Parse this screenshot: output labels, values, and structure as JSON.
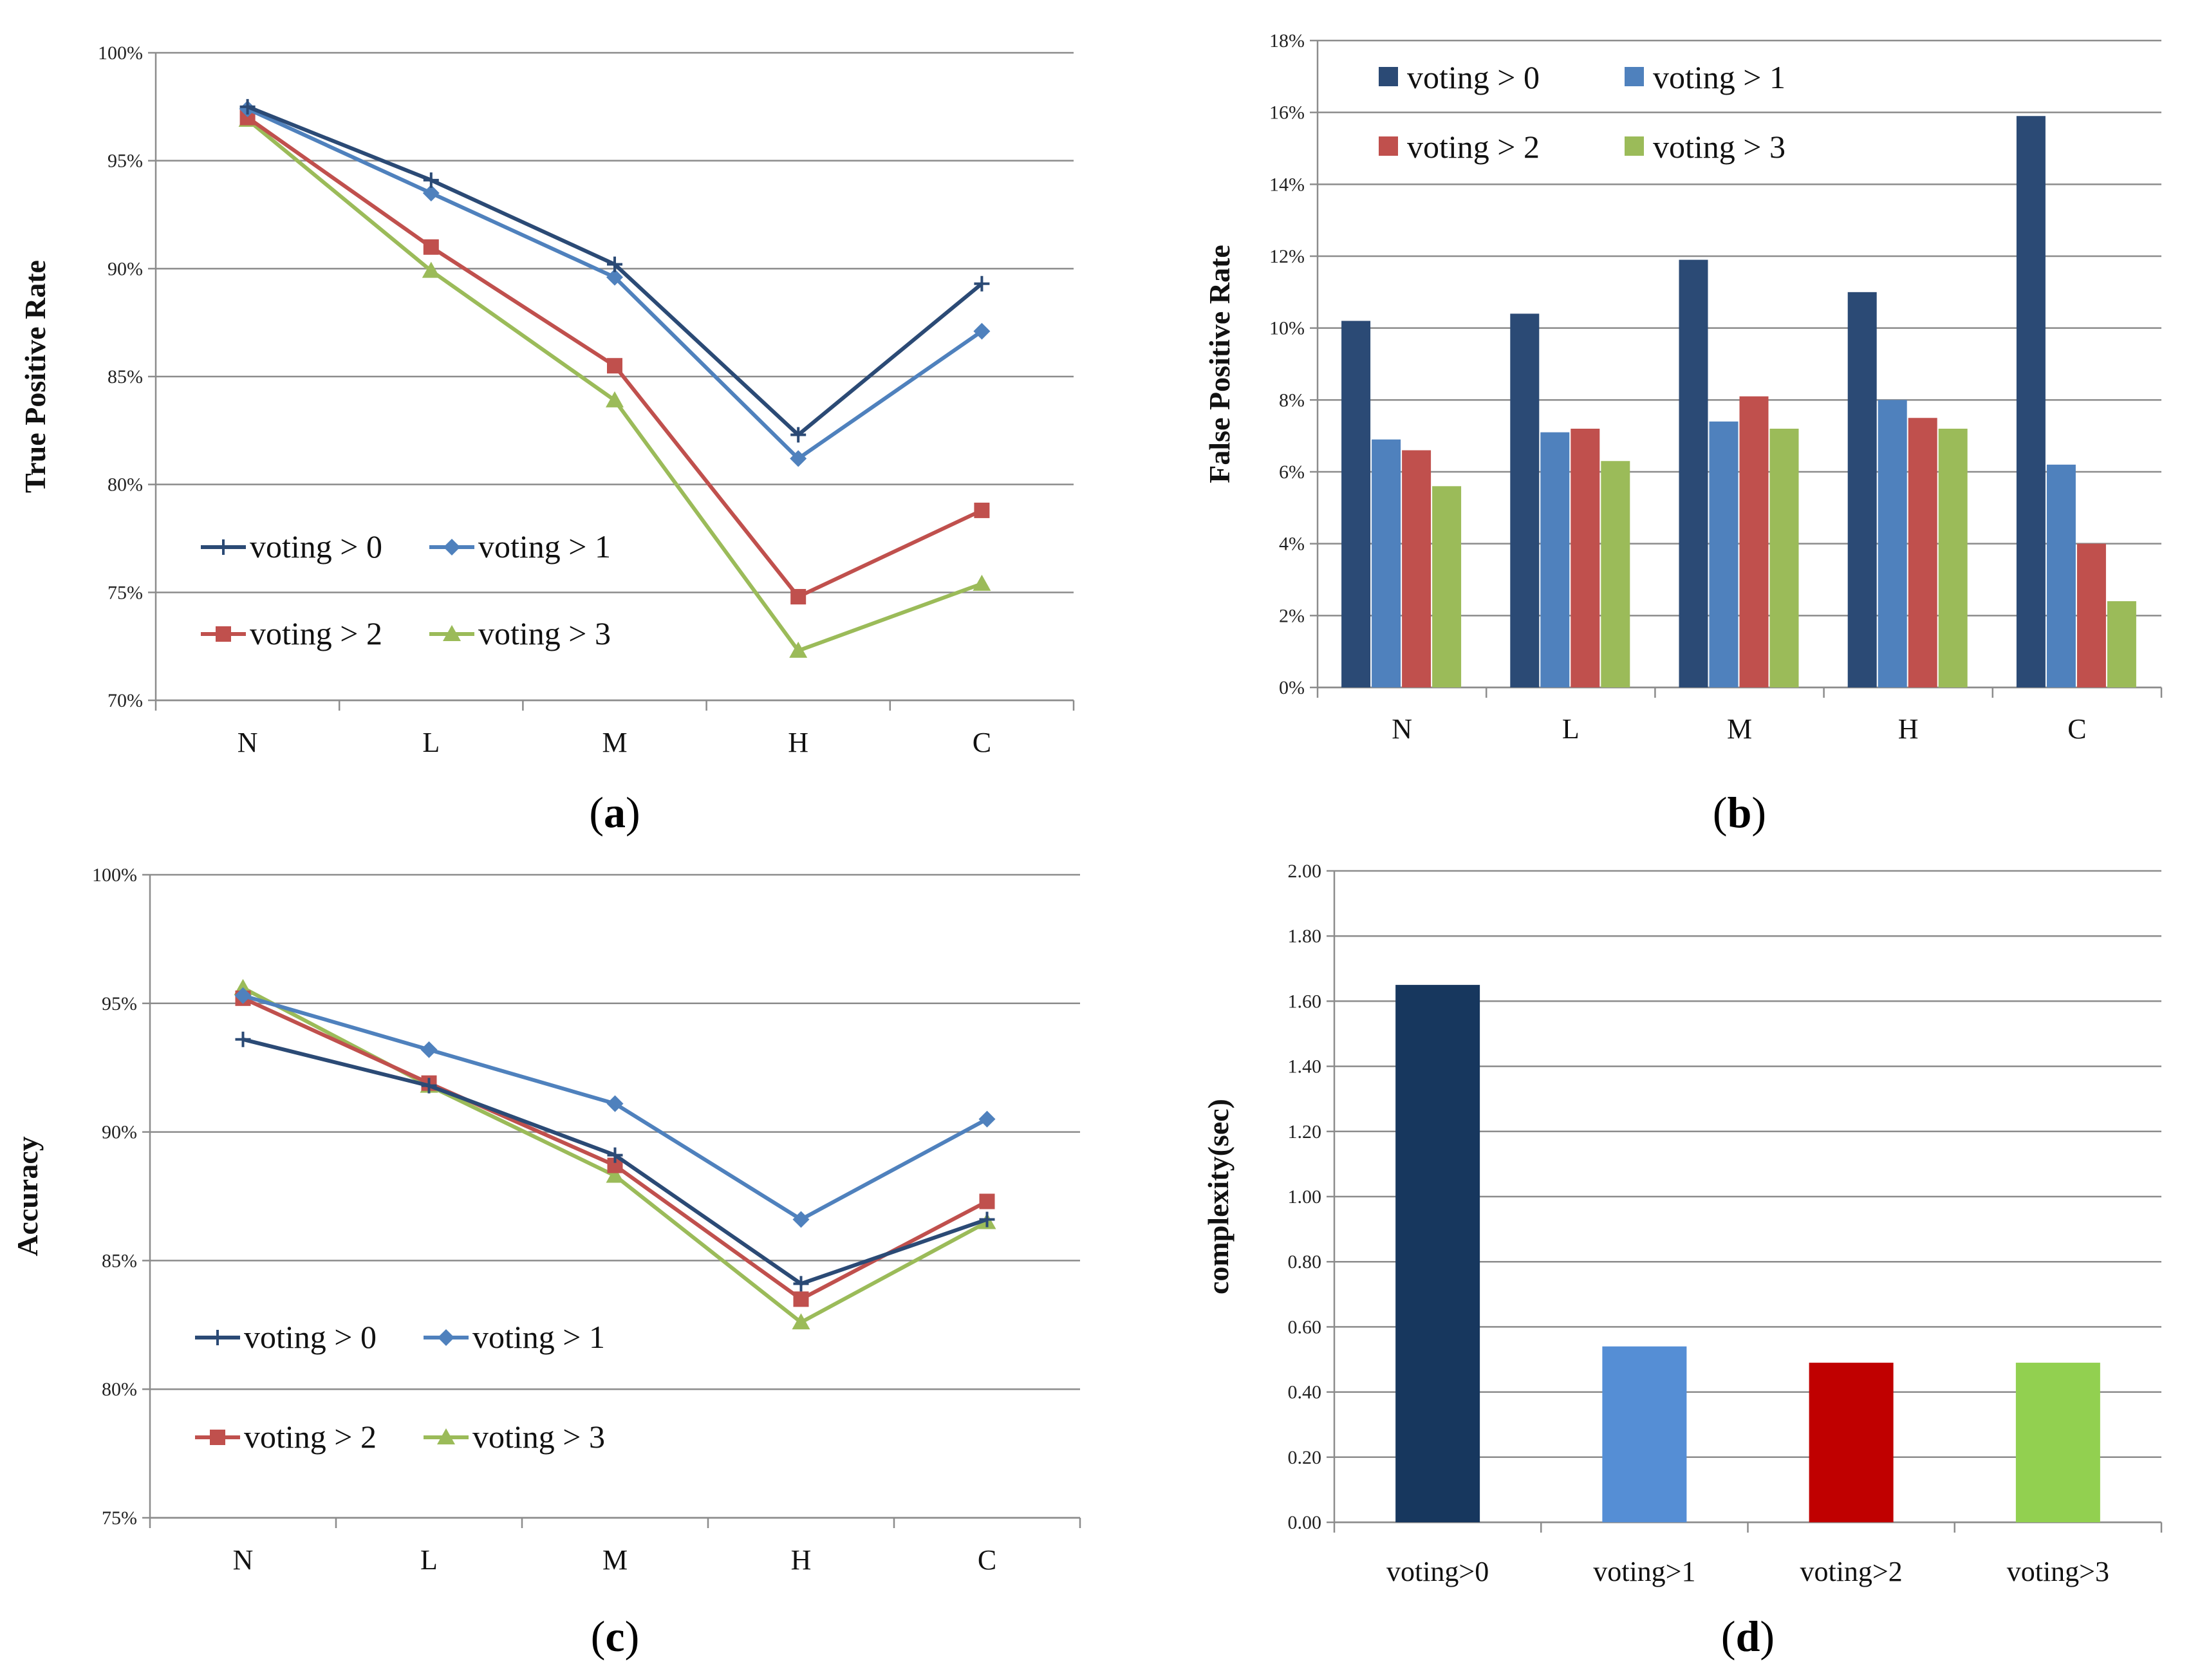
{
  "colors": {
    "series": [
      "#2b4a75",
      "#4f81bd",
      "#c0504d",
      "#9bbb59"
    ],
    "complexity": [
      "#17375e",
      "#558ed5",
      "#c00000",
      "#92d050"
    ],
    "grid": "#8c8c8c",
    "axis": "#8c8c8c"
  },
  "legend": [
    "voting > 0",
    "voting > 1",
    "voting > 2",
    "voting > 3"
  ],
  "chart_data": [
    {
      "id": "a",
      "type": "line",
      "panel_label": "a",
      "title": "",
      "xlabel": "",
      "ylabel": "True Positive Rate",
      "categories": [
        "N",
        "L",
        "M",
        "H",
        "C"
      ],
      "ylim": [
        70,
        100
      ],
      "yticks": [
        70,
        75,
        80,
        85,
        90,
        95,
        100
      ],
      "ytick_labels": [
        "70%",
        "75%",
        "80%",
        "85%",
        "90%",
        "95%",
        "100%"
      ],
      "grid": true,
      "legend_position": "bottom-left",
      "series": [
        {
          "name": "voting > 0",
          "marker": "plus",
          "values": [
            97.5,
            94.1,
            90.2,
            82.3,
            89.3
          ]
        },
        {
          "name": "voting > 1",
          "marker": "diamond",
          "values": [
            97.4,
            93.5,
            89.6,
            81.2,
            87.1
          ]
        },
        {
          "name": "voting > 2",
          "marker": "square",
          "values": [
            97.0,
            91.0,
            85.5,
            74.8,
            78.8
          ]
        },
        {
          "name": "voting > 3",
          "marker": "triangle",
          "values": [
            96.9,
            89.9,
            83.9,
            72.3,
            75.4
          ]
        }
      ]
    },
    {
      "id": "b",
      "type": "bar",
      "panel_label": "b",
      "title": "",
      "xlabel": "",
      "ylabel": "False Positive Rate",
      "categories": [
        "N",
        "L",
        "M",
        "H",
        "C"
      ],
      "ylim": [
        0,
        18
      ],
      "yticks": [
        0,
        2,
        4,
        6,
        8,
        10,
        12,
        14,
        16,
        18
      ],
      "ytick_labels": [
        "0%",
        "2%",
        "4%",
        "6%",
        "8%",
        "10%",
        "12%",
        "14%",
        "16%",
        "18%"
      ],
      "grid": true,
      "legend_position": "top-left",
      "series": [
        {
          "name": "voting > 0",
          "values": [
            10.2,
            10.4,
            11.9,
            11.0,
            15.9
          ]
        },
        {
          "name": "voting > 1",
          "values": [
            6.9,
            7.1,
            7.4,
            8.0,
            6.2
          ]
        },
        {
          "name": "voting > 2",
          "values": [
            6.6,
            7.2,
            8.1,
            7.5,
            4.0
          ]
        },
        {
          "name": "voting > 3",
          "values": [
            5.6,
            6.3,
            7.2,
            7.2,
            2.4
          ]
        }
      ]
    },
    {
      "id": "c",
      "type": "line",
      "panel_label": "c",
      "title": "",
      "xlabel": "",
      "ylabel": "Accuracy",
      "categories": [
        "N",
        "L",
        "M",
        "H",
        "C"
      ],
      "ylim": [
        75,
        100
      ],
      "yticks": [
        75,
        80,
        85,
        90,
        95,
        100
      ],
      "ytick_labels": [
        "75%",
        "80%",
        "85%",
        "90%",
        "95%",
        "100%"
      ],
      "grid": true,
      "legend_position": "bottom-left",
      "series": [
        {
          "name": "voting > 0",
          "marker": "plus",
          "values": [
            93.6,
            91.8,
            89.1,
            84.1,
            86.6
          ]
        },
        {
          "name": "voting > 1",
          "marker": "diamond",
          "values": [
            95.3,
            93.2,
            91.1,
            86.6,
            90.5
          ]
        },
        {
          "name": "voting > 2",
          "marker": "square",
          "values": [
            95.2,
            91.9,
            88.7,
            83.5,
            87.3
          ]
        },
        {
          "name": "voting > 3",
          "marker": "triangle",
          "values": [
            95.6,
            91.8,
            88.3,
            82.6,
            86.5
          ]
        }
      ]
    },
    {
      "id": "d",
      "type": "bar",
      "panel_label": "d",
      "title": "",
      "xlabel": "",
      "ylabel": "complexity(sec)",
      "categories": [
        "voting>0",
        "voting>1",
        "voting>2",
        "voting>3"
      ],
      "ylim": [
        0,
        2
      ],
      "yticks": [
        0,
        0.2,
        0.4,
        0.6,
        0.8,
        1.0,
        1.2,
        1.4,
        1.6,
        1.8,
        2.0
      ],
      "ytick_labels": [
        "0.00",
        "0.20",
        "0.40",
        "0.60",
        "0.80",
        "1.00",
        "1.20",
        "1.40",
        "1.60",
        "1.80",
        "2.00"
      ],
      "grid": true,
      "legend_position": "none",
      "values": [
        1.65,
        0.54,
        0.49,
        0.49
      ]
    }
  ]
}
